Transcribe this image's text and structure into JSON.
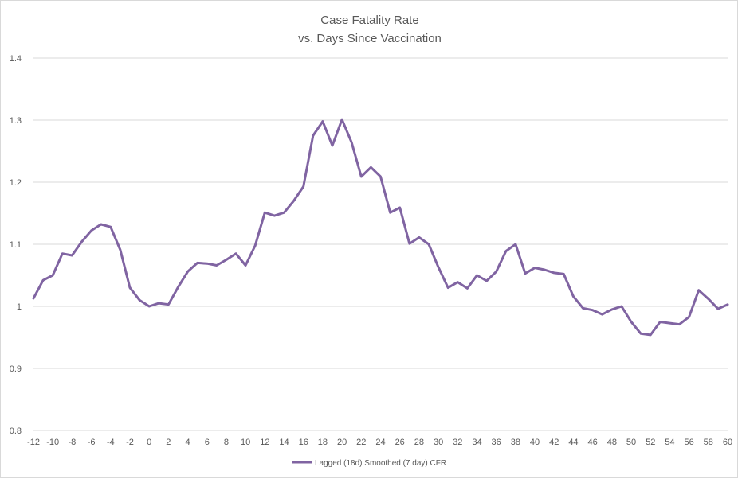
{
  "chart_data": {
    "type": "line",
    "title_lines": [
      "Case Fatality Rate",
      "vs. Days Since Vaccination"
    ],
    "xlabel": "",
    "ylabel": "",
    "ylim": [
      0.8,
      1.4
    ],
    "yticks": [
      "0.8",
      "0.9",
      "1",
      "1.1",
      "1.2",
      "1.3",
      "1.4"
    ],
    "xlim": [
      -12,
      60
    ],
    "xticks": [
      "-12",
      "-10",
      "-8",
      "-6",
      "-4",
      "-2",
      "0",
      "2",
      "4",
      "6",
      "8",
      "10",
      "12",
      "14",
      "16",
      "18",
      "20",
      "22",
      "24",
      "26",
      "28",
      "30",
      "32",
      "34",
      "36",
      "38",
      "40",
      "42",
      "44",
      "46",
      "48",
      "50",
      "52",
      "54",
      "56",
      "58",
      "60"
    ],
    "grid": "horizontal",
    "legend_position": "bottom",
    "series": [
      {
        "name": "Lagged (18d) Smoothed (7 day) CFR",
        "color": "#8064a2",
        "x": [
          -12,
          -11,
          -10,
          -9,
          -8,
          -7,
          -6,
          -5,
          -4,
          -3,
          -2,
          -1,
          0,
          1,
          2,
          3,
          4,
          5,
          6,
          7,
          8,
          9,
          10,
          11,
          12,
          13,
          14,
          15,
          16,
          17,
          18,
          19,
          20,
          21,
          22,
          23,
          24,
          25,
          26,
          27,
          28,
          29,
          30,
          31,
          32,
          33,
          34,
          35,
          36,
          37,
          38,
          39,
          40,
          41,
          42,
          43,
          44,
          45,
          46,
          47,
          48,
          49,
          50,
          51,
          52,
          53,
          54,
          55,
          56,
          57,
          58,
          59,
          60
        ],
        "values": [
          1.013,
          1.042,
          1.05,
          1.085,
          1.082,
          1.104,
          1.122,
          1.132,
          1.128,
          1.091,
          1.03,
          1.01,
          1.0,
          1.005,
          1.003,
          1.031,
          1.056,
          1.07,
          1.069,
          1.066,
          1.075,
          1.085,
          1.066,
          1.098,
          1.151,
          1.146,
          1.151,
          1.17,
          1.193,
          1.275,
          1.298,
          1.259,
          1.301,
          1.264,
          1.209,
          1.224,
          1.209,
          1.151,
          1.159,
          1.101,
          1.111,
          1.1,
          1.063,
          1.03,
          1.039,
          1.029,
          1.05,
          1.041,
          1.056,
          1.089,
          1.1,
          1.053,
          1.062,
          1.059,
          1.054,
          1.052,
          1.016,
          0.997,
          0.994,
          0.987,
          0.995,
          1.0,
          0.975,
          0.956,
          0.954,
          0.975,
          0.973,
          0.971,
          0.983,
          1.026,
          1.012,
          0.996,
          1.003
        ]
      }
    ]
  }
}
